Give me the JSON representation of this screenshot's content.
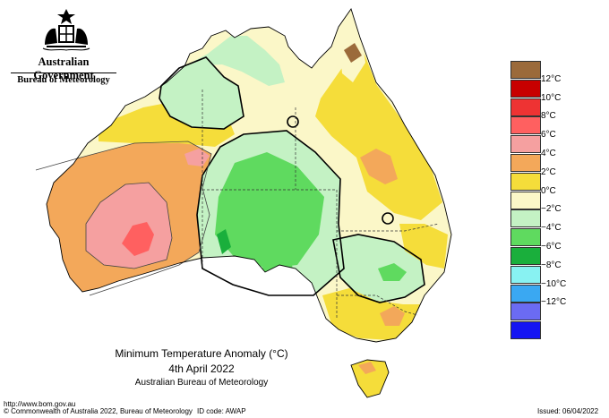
{
  "header": {
    "gov_name": "Australian Government",
    "bureau": "Bureau of Meteorology"
  },
  "legend": {
    "items": [
      {
        "label": "",
        "color": "#9b6a3a"
      },
      {
        "label": "12°C",
        "color": "#c80000"
      },
      {
        "label": "10°C",
        "color": "#ee3333"
      },
      {
        "label": "8°C",
        "color": "#ff6060"
      },
      {
        "label": "6°C",
        "color": "#f5a0a0"
      },
      {
        "label": "4°C",
        "color": "#f3a85a"
      },
      {
        "label": "2°C",
        "color": "#f5dd3a"
      },
      {
        "label": "0°C",
        "color": "#fbf7c8"
      },
      {
        "label": "−2°C",
        "color": "#c4f2c4"
      },
      {
        "label": "−4°C",
        "color": "#5fda5f"
      },
      {
        "label": "−6°C",
        "color": "#1aaf3c"
      },
      {
        "label": "−8°C",
        "color": "#88f2f2"
      },
      {
        "label": "−10°C",
        "color": "#3aa8f2"
      },
      {
        "label": "−12°C",
        "color": "#6b6bf2"
      },
      {
        "label": "",
        "color": "#1515f2"
      }
    ]
  },
  "title": {
    "line1": "Minimum Temperature Anomaly (°C)",
    "line2": "4th April 2022",
    "line3": "Australian Bureau of Meteorology"
  },
  "footer": {
    "url": "http://www.bom.gov.au",
    "copyright": "© Commonwealth of Australia 2022, Bureau of Meteorology",
    "id_code": "ID code: AWAP",
    "issued": "Issued: 06/04/2022"
  }
}
